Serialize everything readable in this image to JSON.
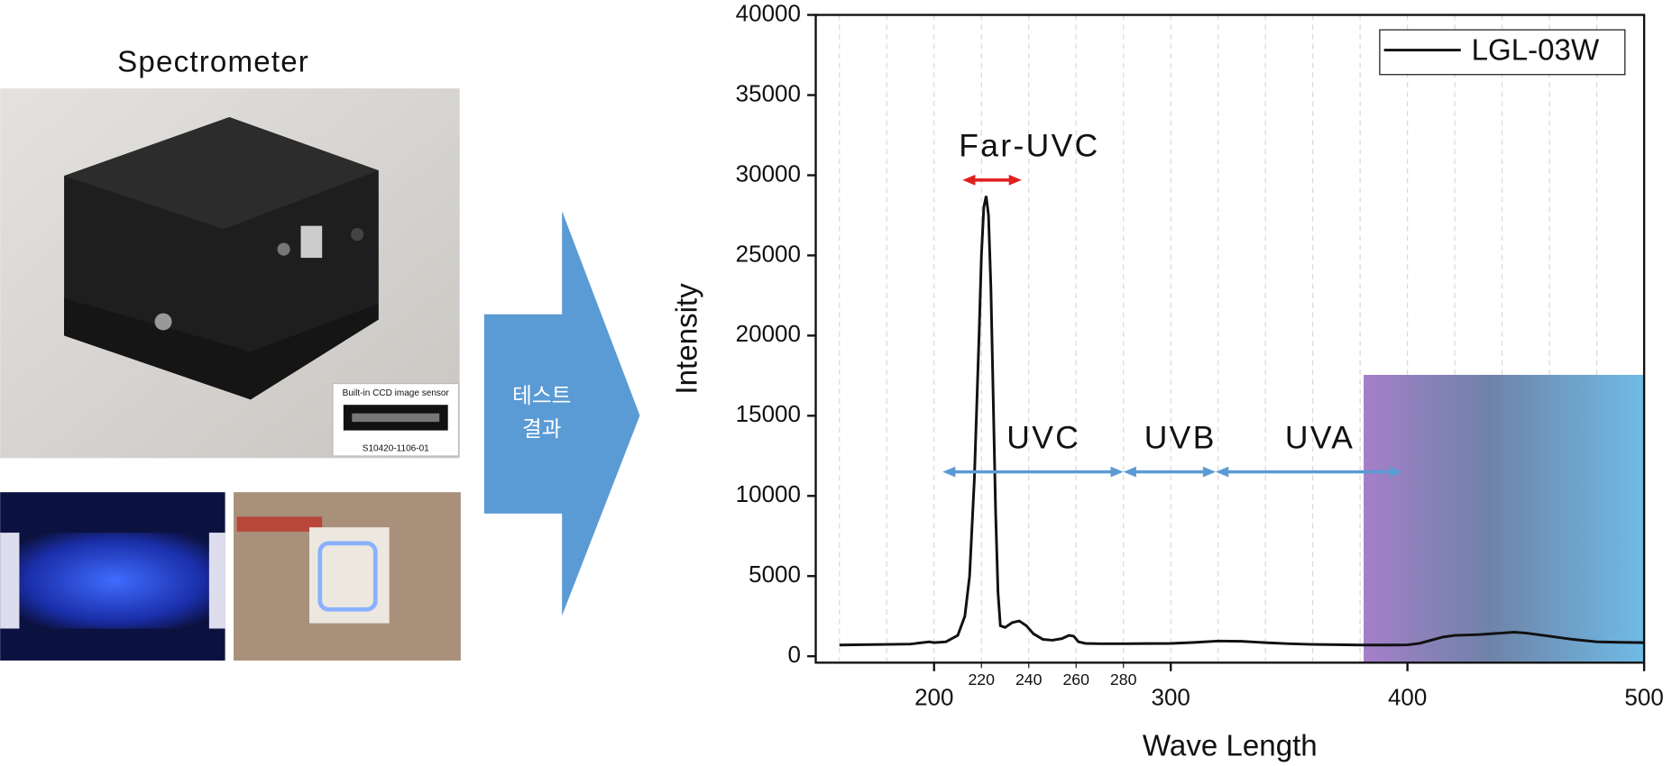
{
  "left_panel": {
    "title": "Spectrometer",
    "inset_caption": "Built-in CCD image sensor",
    "inset_part": "S10420-1106-01"
  },
  "arrow": {
    "lines": [
      "테스트",
      "결과"
    ]
  },
  "chart_data": {
    "type": "line",
    "xlabel": "Wave Length",
    "ylabel": "Intensity",
    "xlim": [
      150,
      500
    ],
    "ylim": [
      -400,
      40000
    ],
    "xticks": [
      200,
      300,
      400,
      500
    ],
    "x_minor_ticks": [
      220,
      240,
      260,
      280
    ],
    "yticks": [
      0,
      5000,
      10000,
      15000,
      20000,
      25000,
      30000,
      35000,
      40000
    ],
    "xgrid": [
      160,
      180,
      200,
      220,
      240,
      260,
      280,
      300,
      320,
      340,
      360,
      380,
      400,
      420,
      440,
      460,
      480
    ],
    "legend": "upper right",
    "series": [
      {
        "name": "LGL-03W",
        "color": "#111111",
        "x": [
          160,
          170,
          180,
          190,
          198,
          200,
          205,
          210,
          213,
          215,
          217,
          219,
          220,
          221,
          222,
          223,
          224,
          225,
          226,
          227,
          228,
          230,
          233,
          236,
          239,
          242,
          246,
          250,
          254,
          257,
          259,
          261,
          264,
          270,
          280,
          290,
          300,
          310,
          320,
          330,
          340,
          350,
          360,
          370,
          380,
          390,
          395,
          400,
          405,
          410,
          415,
          420,
          430,
          440,
          445,
          450,
          460,
          470,
          480,
          490,
          500
        ],
        "values": [
          700,
          720,
          740,
          760,
          900,
          850,
          900,
          1300,
          2500,
          5000,
          11000,
          20000,
          25000,
          28000,
          28700,
          27500,
          23000,
          16000,
          9000,
          4000,
          1900,
          1800,
          2100,
          2200,
          1900,
          1400,
          1050,
          1000,
          1100,
          1300,
          1250,
          900,
          800,
          780,
          780,
          790,
          800,
          860,
          950,
          930,
          850,
          780,
          740,
          720,
          700,
          700,
          700,
          710,
          800,
          1000,
          1200,
          1300,
          1350,
          1450,
          1500,
          1450,
          1250,
          1050,
          900,
          870,
          850
        ]
      }
    ],
    "span": {
      "x": [
        381.5,
        500
      ],
      "ytop": 17550
    },
    "annotations": [
      {
        "text": "Far-UVC",
        "x": [
          212,
          237
        ],
        "y": 29700,
        "color": "#e02020"
      },
      {
        "text": "UVC",
        "x": [
          203.6,
          280
        ],
        "y": 11500,
        "color": "#5b9bd5"
      },
      {
        "text": "UVB",
        "x": [
          280,
          319
        ],
        "y": 11500,
        "color": "#5b9bd5"
      },
      {
        "text": "UVA",
        "x": [
          319,
          398
        ],
        "y": 11500,
        "color": "#5b9bd5"
      }
    ]
  }
}
